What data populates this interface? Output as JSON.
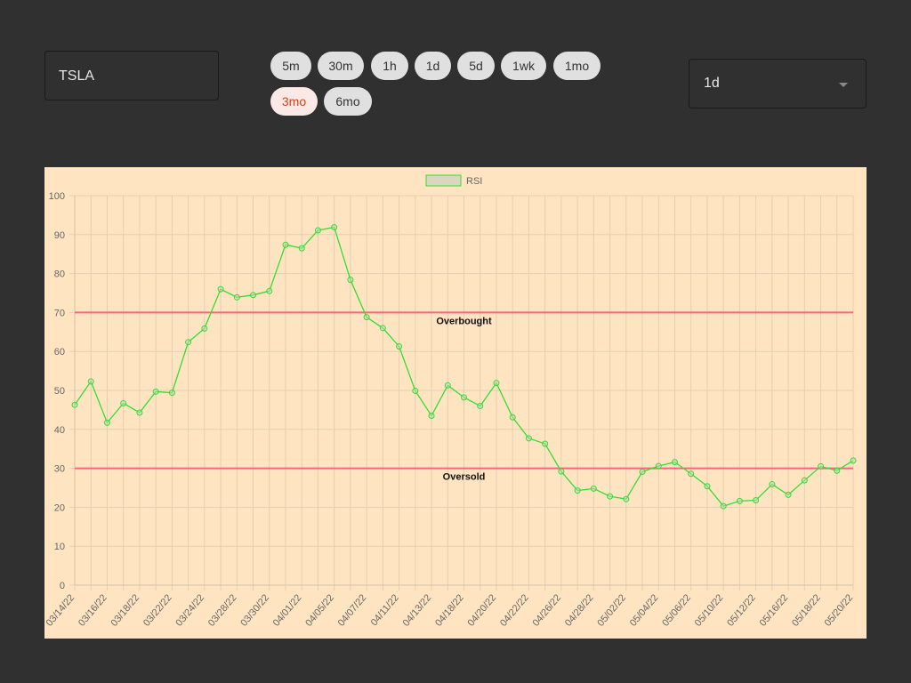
{
  "symbol_input": {
    "value": "TSLA"
  },
  "range_chips": [
    {
      "label": "5m",
      "active": false
    },
    {
      "label": "30m",
      "active": false
    },
    {
      "label": "1h",
      "active": false
    },
    {
      "label": "1d",
      "active": false
    },
    {
      "label": "5d",
      "active": false
    },
    {
      "label": "1wk",
      "active": false
    },
    {
      "label": "1mo",
      "active": false
    },
    {
      "label": "3mo",
      "active": true
    },
    {
      "label": "6mo",
      "active": false
    }
  ],
  "interval_select": {
    "value": "1d"
  },
  "colors": {
    "page_bg": "#303030",
    "chart_bg": "#ffe4c2",
    "rsi_line": "#33dd33",
    "threshold_line": "#ff6384",
    "active_chip_text": "#d84315"
  },
  "chart_data": {
    "type": "line",
    "title": "",
    "legend": {
      "label": "RSI",
      "placement": "top-center"
    },
    "ylim": [
      0,
      100
    ],
    "yticks": [
      0,
      10,
      20,
      30,
      40,
      50,
      60,
      70,
      80,
      90,
      100
    ],
    "grid": true,
    "x_tick_labels": [
      "03/14/22",
      "03/16/22",
      "03/18/22",
      "03/22/22",
      "03/24/22",
      "03/28/22",
      "03/30/22",
      "04/01/22",
      "04/05/22",
      "04/07/22",
      "04/11/22",
      "04/13/22",
      "04/18/22",
      "04/20/22",
      "04/22/22",
      "04/26/22",
      "04/28/22",
      "05/02/22",
      "05/04/22",
      "05/06/22",
      "05/10/22",
      "05/12/22",
      "05/16/22",
      "05/18/22",
      "05/20/22"
    ],
    "series": [
      {
        "name": "RSI",
        "values": [
          46.3,
          52.3,
          41.7,
          46.7,
          44.3,
          49.7,
          49.4,
          62.4,
          65.9,
          76.0,
          73.9,
          74.5,
          75.5,
          87.4,
          86.5,
          91.1,
          91.9,
          78.4,
          68.8,
          66.0,
          61.3,
          49.9,
          43.5,
          51.3,
          48.2,
          46.0,
          51.9,
          43.1,
          37.7,
          36.3,
          29.2,
          24.3,
          24.8,
          22.8,
          22.1,
          29.1,
          30.6,
          31.6,
          28.6,
          25.4,
          20.3,
          21.6,
          21.8,
          25.9,
          23.2,
          26.9,
          30.5,
          29.4,
          32.0
        ]
      }
    ],
    "reference_lines": [
      {
        "label": "Overbought",
        "value": 70
      },
      {
        "label": "Oversold",
        "value": 30
      }
    ]
  }
}
